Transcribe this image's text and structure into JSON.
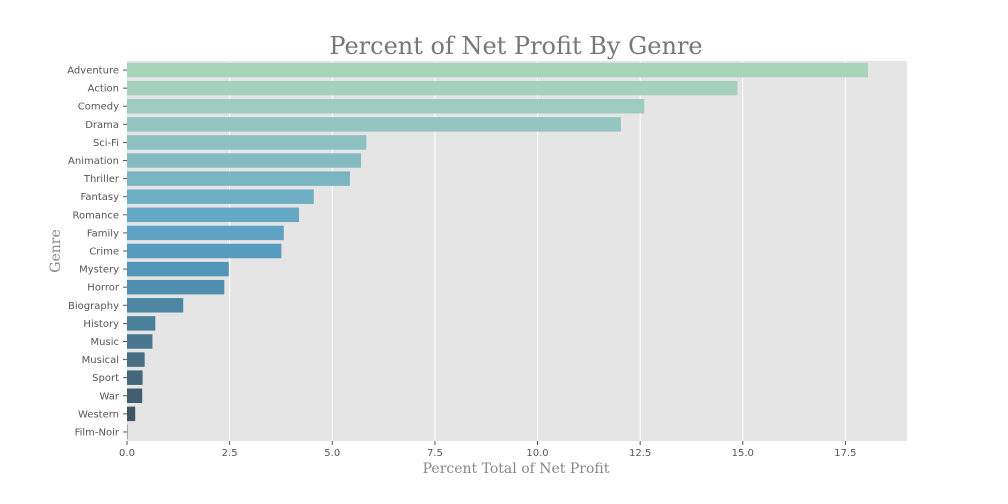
{
  "chart_data": {
    "type": "bar",
    "orientation": "horizontal",
    "title": "Percent of Net Profit By Genre",
    "xlabel": "Percent Total of Net Profit",
    "ylabel": "Genre",
    "xlim": [
      0,
      19
    ],
    "xticks": [
      "0.0",
      "2.5",
      "5.0",
      "7.5",
      "10.0",
      "12.5",
      "15.0",
      "17.5"
    ],
    "xtick_values": [
      0,
      2.5,
      5,
      7.5,
      10,
      12.5,
      15,
      17.5
    ],
    "grid": true,
    "background_color": "#e5e5e5",
    "categories": [
      "Adventure",
      "Action",
      "Comedy",
      "Drama",
      "Sci-Fi",
      "Animation",
      "Thriller",
      "Fantasy",
      "Romance",
      "Family",
      "Crime",
      "Mystery",
      "Horror",
      "Biography",
      "History",
      "Music",
      "Musical",
      "Sport",
      "War",
      "Western",
      "Film-Noir"
    ],
    "values": [
      18.05,
      14.87,
      12.6,
      12.03,
      5.83,
      5.7,
      5.43,
      4.55,
      4.19,
      3.82,
      3.76,
      2.48,
      2.37,
      1.37,
      0.69,
      0.62,
      0.43,
      0.38,
      0.37,
      0.2,
      0.01
    ],
    "colors": [
      "#a9d4bb",
      "#a6d0be",
      "#9ecbbf",
      "#94c5c0",
      "#8cc0c1",
      "#84bbc1",
      "#7ab5c2",
      "#6fafc3",
      "#66a9c4",
      "#5ea3c4",
      "#579bc0",
      "#5295b7",
      "#4f8eae",
      "#4c86a4",
      "#4a7f9a",
      "#48778f",
      "#466f84",
      "#44677a",
      "#425f6f",
      "#405664",
      "#3e4f5b"
    ]
  }
}
